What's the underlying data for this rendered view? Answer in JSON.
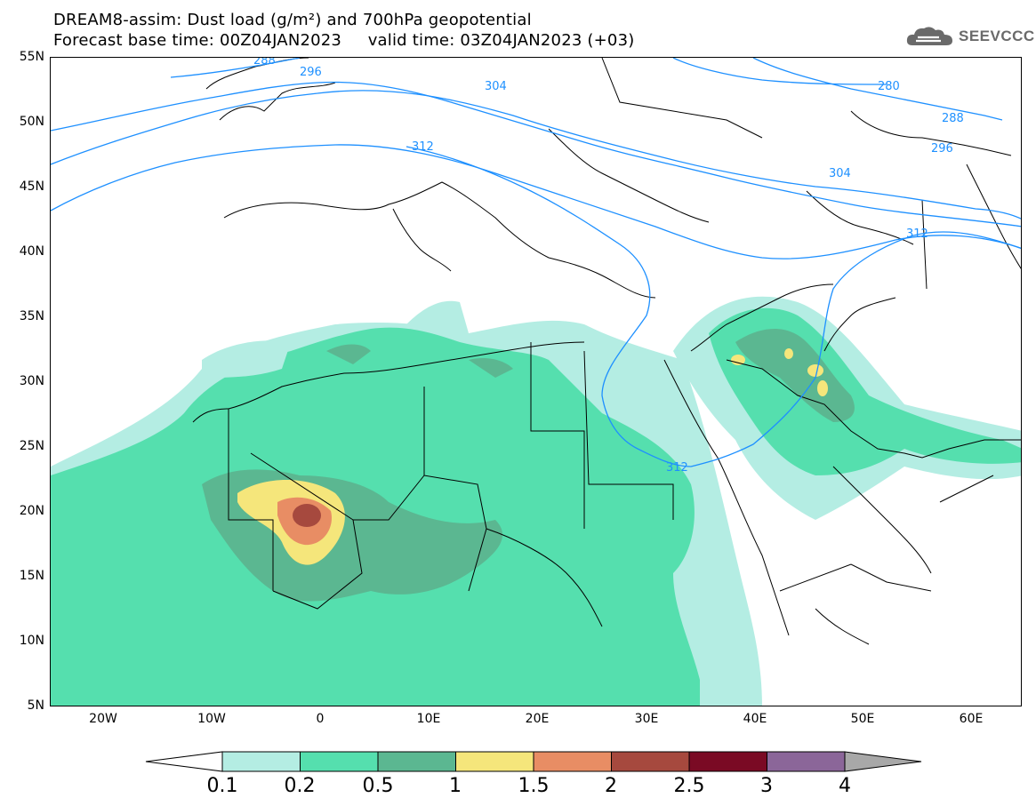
{
  "header": {
    "title_line1": "DREAM8-assim: Dust load (g/m²) and 700hPa geopotential",
    "title_line2": "Forecast base time: 00Z04JAN2023     valid time: 03Z04JAN2023 (+03)",
    "logo_text": "SEEVCCC",
    "logo_icon": "cloud-icon"
  },
  "map": {
    "lat_labels": [
      "55N",
      "50N",
      "45N",
      "40N",
      "35N",
      "30N",
      "25N",
      "20N",
      "15N",
      "10N",
      "5N"
    ],
    "lon_labels": [
      "20W",
      "10W",
      "0",
      "10E",
      "20E",
      "30E",
      "40E",
      "50E",
      "60E"
    ],
    "contour_labels": [
      "288",
      "296",
      "304",
      "312",
      "280",
      "288",
      "296",
      "304",
      "312",
      "312"
    ],
    "colors": {
      "frame": "#000000",
      "coast": "#000000",
      "contour": "#1e90ff"
    }
  },
  "colorbar": {
    "ticks": [
      "0.1",
      "0.2",
      "0.5",
      "1",
      "1.5",
      "2",
      "2.5",
      "3",
      "4"
    ],
    "colors": [
      "#ffffff",
      "#b4ede3",
      "#55dfae",
      "#5bb791",
      "#f5e67b",
      "#e88d64",
      "#a6493e",
      "#7a0a24",
      "#8b6699",
      "#a8a8a8"
    ]
  }
}
